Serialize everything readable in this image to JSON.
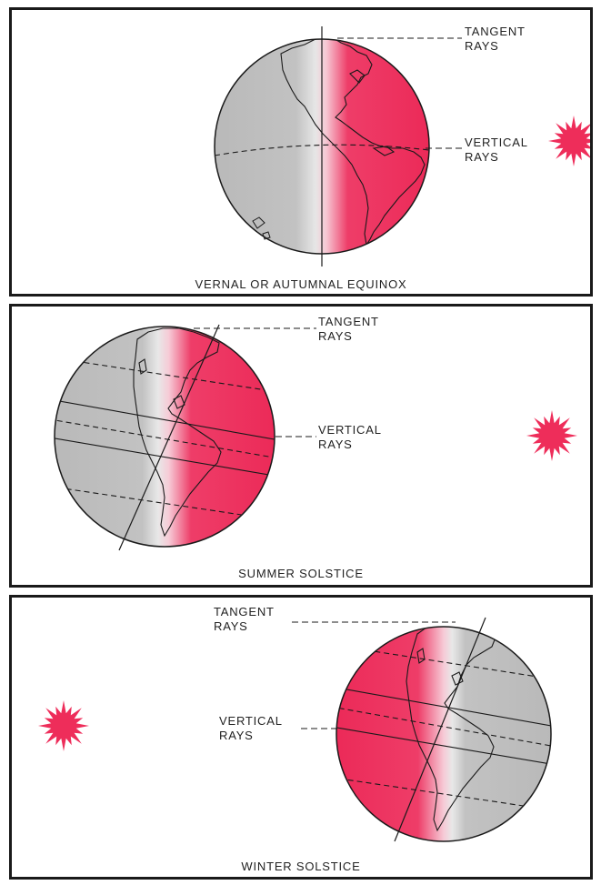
{
  "colors": {
    "sun": "#ee2d5a",
    "lit": "#ee2d5a",
    "night": "#b8b8b8",
    "ink": "#1a1a1a"
  },
  "panels": [
    {
      "caption": "VERNAL OR AUTUMNAL EQUINOX",
      "tangent_line1": "TANGENT",
      "tangent_line2": "RAYS",
      "vertical_line1": "VERTICAL",
      "vertical_line2": "RAYS",
      "sun_icon": "sun-icon"
    },
    {
      "caption": "SUMMER SOLSTICE",
      "tangent_line1": "TANGENT",
      "tangent_line2": "RAYS",
      "vertical_line1": "VERTICAL",
      "vertical_line2": "RAYS",
      "sun_icon": "sun-icon"
    },
    {
      "caption": "WINTER SOLSTICE",
      "tangent_line1": "TANGENT",
      "tangent_line2": "RAYS",
      "vertical_line1": "VERTICAL",
      "vertical_line2": "RAYS",
      "sun_icon": "sun-icon"
    }
  ]
}
